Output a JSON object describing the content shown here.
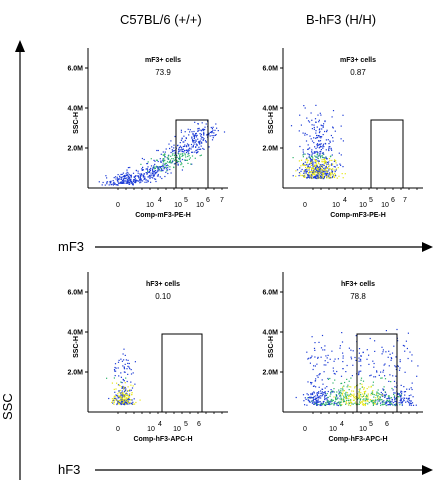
{
  "columns": [
    "C57BL/6 (+/+)",
    "B-hF3 (H/H)"
  ],
  "row_labels": [
    "mF3",
    "hF3"
  ],
  "y_axis_label": "SSC",
  "chart_data": [
    {
      "type": "scatter",
      "panel": "mF3 C57BL/6 (+/+)",
      "title": "mF3+ cells",
      "gate_value": "73.9",
      "xlabel": "Comp-mF3-PE-H",
      "ylabel": "SSC-H",
      "y_ticks": [
        "2.0M",
        "4.0M",
        "6.0M"
      ],
      "x_ticks": [
        "0",
        "10",
        "4",
        "10",
        "5",
        "10",
        "6",
        "7"
      ],
      "gate": {
        "x_from": 4,
        "x_to": 5.6,
        "y_from": 0,
        "y_to": 3.4
      },
      "ylim": [
        0,
        7
      ]
    },
    {
      "type": "scatter",
      "panel": "mF3 B-hF3 (H/H)",
      "title": "mF3+ cells",
      "gate_value": "0.87",
      "xlabel": "Comp-mF3-PE-H",
      "ylabel": "SSC-H",
      "y_ticks": [
        "2.0M",
        "4.0M",
        "6.0M"
      ],
      "x_ticks": [
        "0",
        "10",
        "4",
        "10",
        "5",
        "10",
        "6",
        "7"
      ],
      "gate": {
        "x_from": 4,
        "x_to": 5.6,
        "y_from": 0,
        "y_to": 3.4
      },
      "ylim": [
        0,
        7
      ]
    },
    {
      "type": "scatter",
      "panel": "hF3 C57BL/6 (+/+)",
      "title": "hF3+ cells",
      "gate_value": "0.10",
      "xlabel": "Comp-hF3-APC-H",
      "ylabel": "SSC-H",
      "y_ticks": [
        "2.0M",
        "4.0M",
        "6.0M"
      ],
      "x_ticks": [
        "0",
        "10",
        "4",
        "10",
        "5",
        "6"
      ],
      "gate": {
        "x_from": 3.3,
        "x_to": 5.3,
        "y_from": 0,
        "y_to": 3.9
      },
      "ylim": [
        0,
        7
      ]
    },
    {
      "type": "scatter",
      "panel": "hF3 B-hF3 (H/H)",
      "title": "hF3+ cells",
      "gate_value": "78.8",
      "xlabel": "Comp-hF3-APC-H",
      "ylabel": "SSC-H",
      "y_ticks": [
        "2.0M",
        "4.0M",
        "6.0M"
      ],
      "x_ticks": [
        "0",
        "10",
        "4",
        "10",
        "5",
        "6"
      ],
      "gate": {
        "x_from": 3.3,
        "x_to": 5.3,
        "y_from": 0,
        "y_to": 3.9
      },
      "ylim": [
        0,
        7
      ]
    }
  ],
  "colors": {
    "low_density": "#1c3bd6",
    "mid_density": "#2fb36a",
    "high_density": "#e6e61a",
    "axis": "#000000"
  }
}
